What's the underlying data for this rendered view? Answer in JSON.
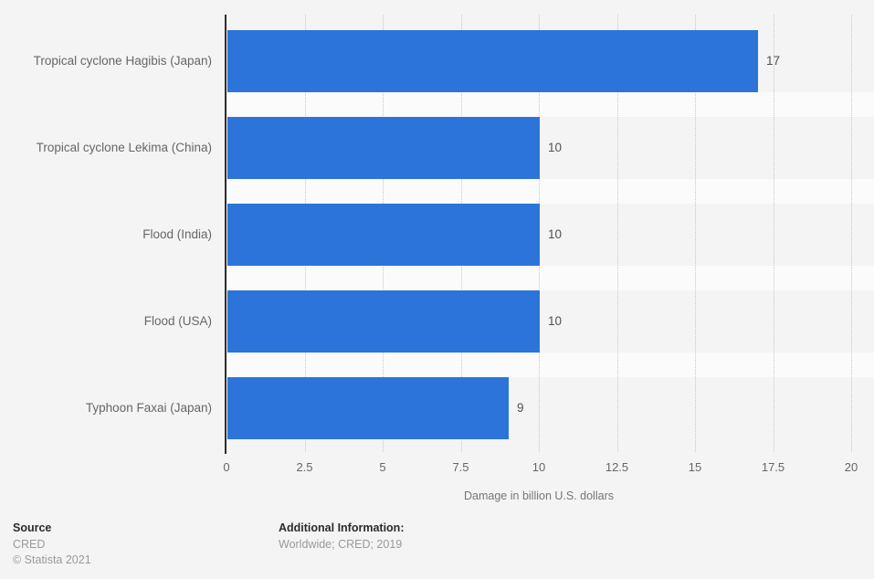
{
  "chart_data": {
    "type": "bar",
    "orientation": "horizontal",
    "categories": [
      "Tropical cyclone Hagibis (Japan)",
      "Tropical cyclone Lekima (China)",
      "Flood (India)",
      "Flood (USA)",
      "Typhoon Faxai (Japan)"
    ],
    "values": [
      17,
      10,
      10,
      10,
      9
    ],
    "value_labels": [
      "17",
      "10",
      "10",
      "10",
      "9"
    ],
    "title": "",
    "xlabel": "Damage in billion U.S. dollars",
    "ylabel": "",
    "xlim": [
      0,
      20
    ],
    "x_ticks": [
      0,
      2.5,
      5,
      7.5,
      10,
      12.5,
      15,
      17.5,
      20
    ],
    "x_tick_labels": [
      "0",
      "2.5",
      "5",
      "7.5",
      "10",
      "12.5",
      "15",
      "17.5",
      "20"
    ],
    "grid": "vertical-dotted",
    "legend": "none",
    "bar_color": "#2c74da",
    "band_gap_color": "#fbfbfb",
    "background_color": "#f4f4f4"
  },
  "footer": {
    "source_heading": "Source",
    "source_name": "CRED",
    "copyright": "© Statista 2021",
    "additional_heading": "Additional Information:",
    "additional_text": "Worldwide; CRED; 2019"
  }
}
